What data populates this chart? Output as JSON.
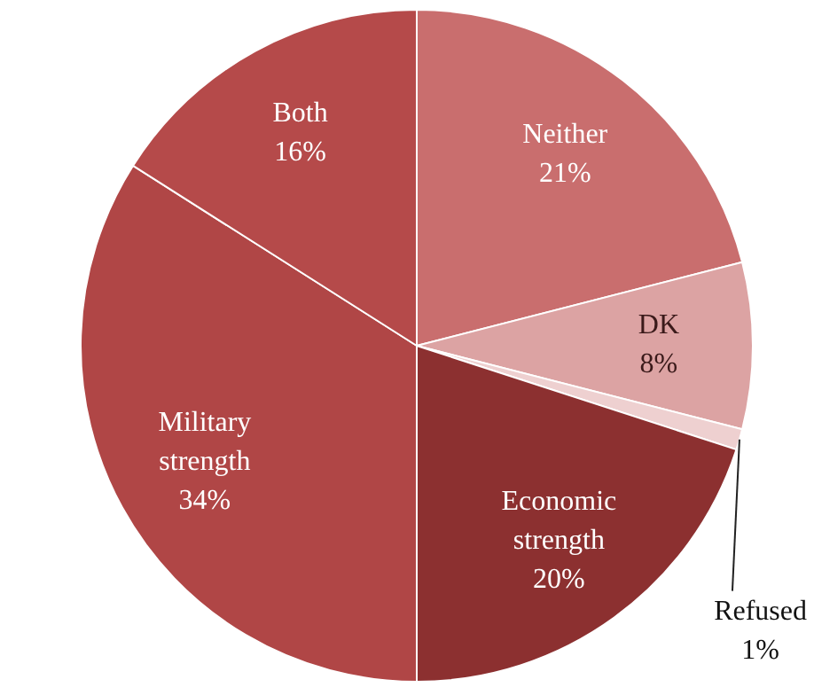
{
  "chart_data": {
    "type": "pie",
    "categories": [
      "Neither",
      "DK",
      "Refused",
      "Economic strength",
      "Military strength",
      "Both"
    ],
    "values": [
      21,
      8,
      1,
      20,
      34,
      16
    ],
    "value_labels": [
      "21%",
      "8%",
      "1%",
      "20%",
      "34%",
      "16%"
    ],
    "colors": [
      "#c96e6e",
      "#dca3a3",
      "#eed0d0",
      "#8c3030",
      "#b04646",
      "#b54a4a"
    ]
  }
}
